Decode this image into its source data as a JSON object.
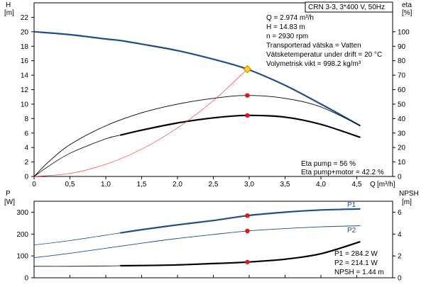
{
  "chart_data": [
    {
      "type": "line",
      "panel": "upper",
      "title_box": "CRN 3-3, 3*400 V, 50Hz",
      "ylabel_left": "H",
      "yunit_left": "[m]",
      "ylabel_right": "eta",
      "yunit_right": "[%]",
      "xlabel": "Q",
      "xunit": "[m³/h]",
      "xlim": [
        0,
        5
      ],
      "ylim_left": [
        0,
        24
      ],
      "ylim_right": [
        0,
        120
      ],
      "x_ticks": [
        "0",
        "0,5",
        "1,0",
        "1,5",
        "2,0",
        "2,5",
        "3,0",
        "3,5",
        "4,0",
        "4,5"
      ],
      "x_tick_values": [
        0,
        0.5,
        1,
        1.5,
        2,
        2.5,
        3,
        3.5,
        4,
        4.5
      ],
      "y_left_ticks": [
        0,
        2,
        4,
        6,
        8,
        10,
        12,
        14,
        16,
        18,
        20,
        22
      ],
      "y_right_ticks": [
        0,
        10,
        20,
        30,
        40,
        50,
        60,
        70,
        80,
        90,
        100
      ],
      "grid": false,
      "info_lines": [
        "Q = 2.974 m³/h",
        "H = 14.83 m",
        "n = 2930 rpm",
        "Transporterad vätska = Vatten",
        "Vätsketemperatur under drift = 20 °C",
        "Volymetrisk vikt = 998.2 kg/m³"
      ],
      "eta_lines": [
        "Eta pump = 56 %",
        "Eta pump+motor = 42.2 %"
      ],
      "series": [
        {
          "axis": "left",
          "color": "#1f4e8c",
          "x": [
            0,
            0.5,
            1.0,
            1.2,
            1.5,
            2.0,
            2.5,
            2.974,
            3.5,
            4.0,
            4.55
          ],
          "values": [
            20.0,
            19.6,
            19.0,
            18.8,
            18.3,
            17.4,
            16.2,
            14.83,
            12.6,
            10.0,
            7.0
          ],
          "marker": {
            "x": 2.974,
            "value": 14.83
          }
        },
        {
          "axis": "right",
          "color": "#000000",
          "x": [
            0,
            0.2,
            0.5,
            1.0,
            1.5,
            2.0,
            2.5,
            2.974,
            3.5,
            4.0,
            4.55
          ],
          "values": [
            0,
            10,
            22,
            35,
            44,
            50,
            54,
            56,
            54,
            48,
            35
          ],
          "marker": {
            "x": 2.974,
            "value": 56
          }
        },
        {
          "axis": "right",
          "color": "#000000",
          "thick_from": 1.2,
          "x": [
            0,
            0.2,
            0.5,
            1.0,
            1.2,
            1.5,
            2.0,
            2.5,
            2.974,
            3.5,
            4.0,
            4.55
          ],
          "values": [
            0,
            7,
            16,
            26,
            28.5,
            32,
            37,
            40.5,
            42.2,
            41,
            36,
            27
          ],
          "marker": {
            "x": 2.974,
            "value": 42.2
          }
        },
        {
          "axis": "left",
          "color": "#ff3333",
          "x": [
            0,
            0.5,
            1.0,
            1.5,
            2.0,
            2.5,
            2.974
          ],
          "values": [
            0,
            0.42,
            1.68,
            3.77,
            6.71,
            10.48,
            14.83
          ]
        }
      ]
    },
    {
      "type": "line",
      "panel": "lower",
      "ylabel_left": "P",
      "yunit_left": "[W]",
      "ylabel_right": "NPSH",
      "yunit_right": "[m]",
      "xlim": [
        0,
        5
      ],
      "ylim_left": [
        0,
        350
      ],
      "ylim_right": [
        0,
        7
      ],
      "y_left_ticks": [
        0,
        100,
        200,
        300
      ],
      "y_right_ticks": [
        0,
        2,
        4,
        6
      ],
      "info_lines": [
        "P1 = 284.2 W",
        "P2 = 214.1 W",
        "NPSH = 1.44 m"
      ],
      "series": [
        {
          "name": "P1",
          "axis": "left",
          "color": "#1f4e8c",
          "thick_from": 1.2,
          "x": [
            0,
            0.5,
            1.0,
            1.2,
            1.5,
            2.0,
            2.5,
            2.974,
            3.5,
            4.0,
            4.55
          ],
          "values": [
            150,
            170,
            195,
            205,
            220,
            242,
            262,
            284.2,
            300,
            310,
            315
          ],
          "marker": {
            "x": 2.974,
            "value": 284.2
          }
        },
        {
          "name": "P2",
          "axis": "left",
          "color": "#1f4e8c",
          "x": [
            0,
            0.5,
            1.0,
            1.5,
            2.0,
            2.5,
            2.974,
            3.5,
            4.0,
            4.55
          ],
          "values": [
            92,
            112,
            135,
            158,
            180,
            198,
            214.1,
            225,
            233,
            238
          ],
          "marker": {
            "x": 2.974,
            "value": 214.1
          }
        },
        {
          "axis": "right",
          "color": "#000000",
          "thick_from": 1.2,
          "x": [
            0,
            0.5,
            1.0,
            1.2,
            1.5,
            2.0,
            2.5,
            2.974,
            3.5,
            4.0,
            4.55
          ],
          "values": [
            1.05,
            1.05,
            1.08,
            1.1,
            1.12,
            1.18,
            1.3,
            1.44,
            1.7,
            2.2,
            3.3
          ],
          "marker": {
            "x": 2.974,
            "value": 1.44
          }
        }
      ]
    }
  ]
}
